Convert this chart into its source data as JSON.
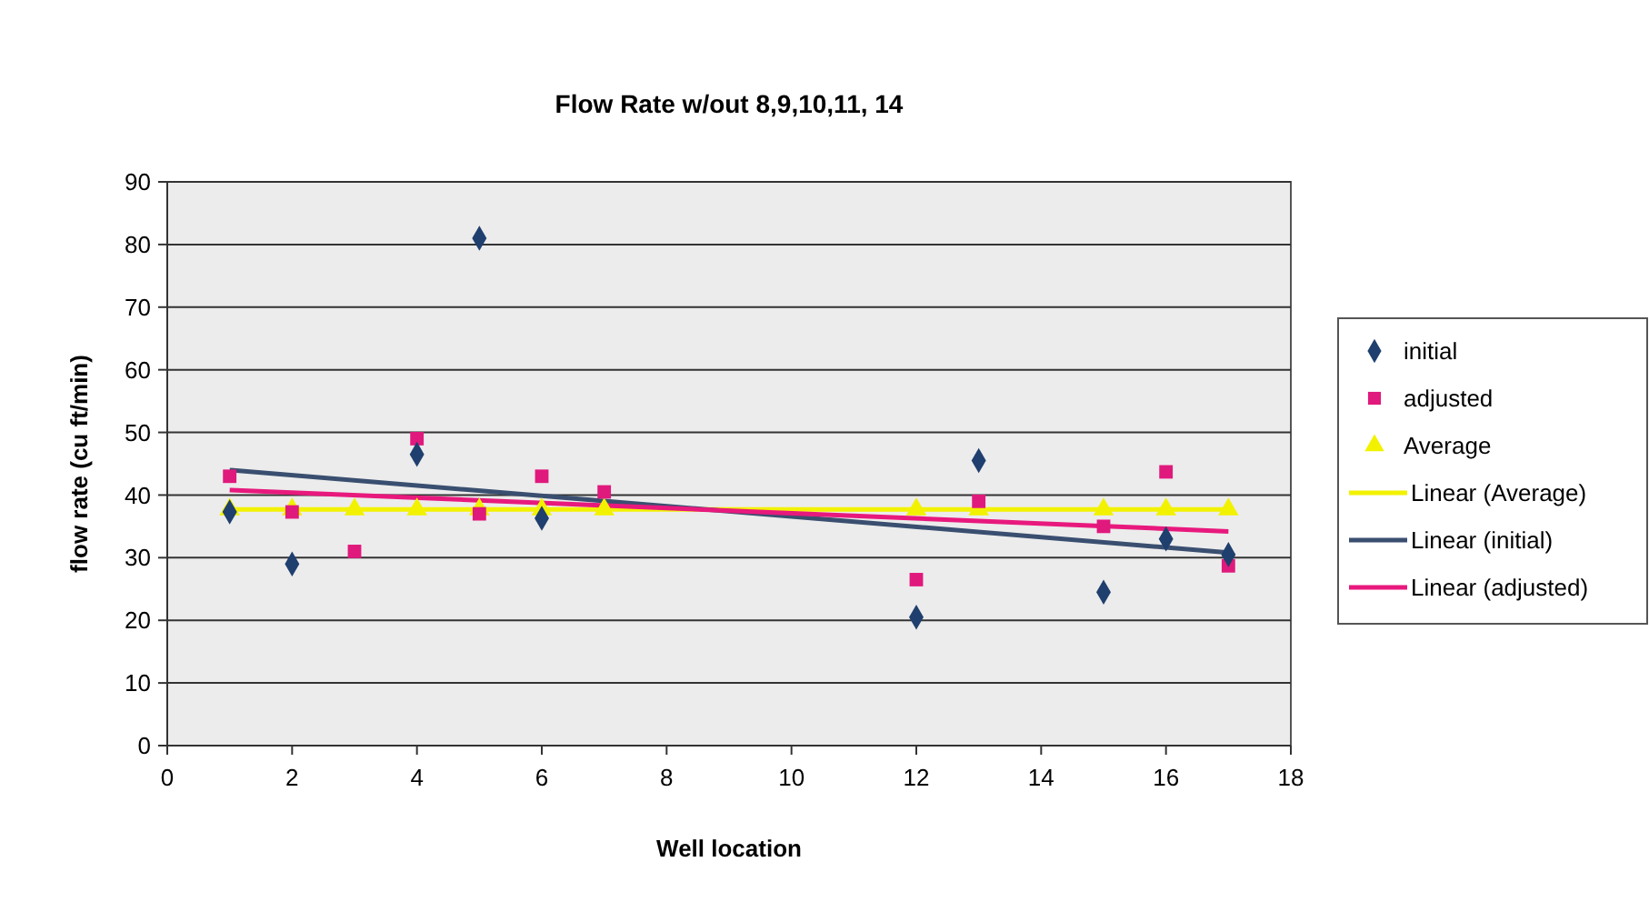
{
  "chart_data": {
    "type": "scatter",
    "title": "Flow Rate w/out 8,9,10,11, 14",
    "xlabel": "Well location",
    "ylabel": "flow rate (cu ft/min)",
    "xlim": [
      0,
      18
    ],
    "xticks": [
      0,
      2,
      4,
      6,
      8,
      10,
      12,
      14,
      16,
      18
    ],
    "ylim": [
      0,
      90
    ],
    "yticks": [
      0,
      10,
      20,
      30,
      40,
      50,
      60,
      70,
      80,
      90
    ],
    "grid": "y",
    "legend": "right",
    "series": [
      {
        "name": "initial",
        "color": "#1f3f6e",
        "marker": "diamond",
        "x": [
          1,
          2,
          4,
          5,
          6,
          12,
          13,
          15,
          16,
          17
        ],
        "values": [
          37.3,
          29,
          46.5,
          81,
          36.3,
          20.5,
          45.5,
          24.5,
          33,
          30.5
        ]
      },
      {
        "name": "adjusted",
        "color": "#e0197d",
        "marker": "square",
        "x": [
          1,
          2,
          3,
          4,
          5,
          6,
          7,
          12,
          13,
          15,
          16,
          17
        ],
        "values": [
          43,
          37.3,
          31,
          49,
          37,
          43,
          40.5,
          26.5,
          39,
          35,
          43.7,
          28.7
        ]
      },
      {
        "name": "Average",
        "color": "#f2f200",
        "marker": "triangle",
        "x": [
          1,
          2,
          3,
          4,
          5,
          6,
          7,
          12,
          13,
          15,
          16,
          17
        ],
        "values": [
          37.7,
          37.7,
          37.7,
          37.7,
          37.7,
          37.7,
          37.7,
          37.7,
          37.7,
          37.7,
          37.7,
          37.7
        ]
      },
      {
        "name": "Linear (Average)",
        "type": "line",
        "color": "#f2f200",
        "x": [
          1,
          17
        ],
        "values": [
          37.7,
          37.7
        ]
      },
      {
        "name": "Linear (initial)",
        "type": "line",
        "color": "#3a4f70",
        "x": [
          1,
          17
        ],
        "values": [
          44,
          30.8
        ]
      },
      {
        "name": "Linear (adjusted)",
        "type": "line",
        "color": "#e8197d",
        "x": [
          1,
          17
        ],
        "values": [
          40.8,
          34.2
        ]
      }
    ]
  }
}
